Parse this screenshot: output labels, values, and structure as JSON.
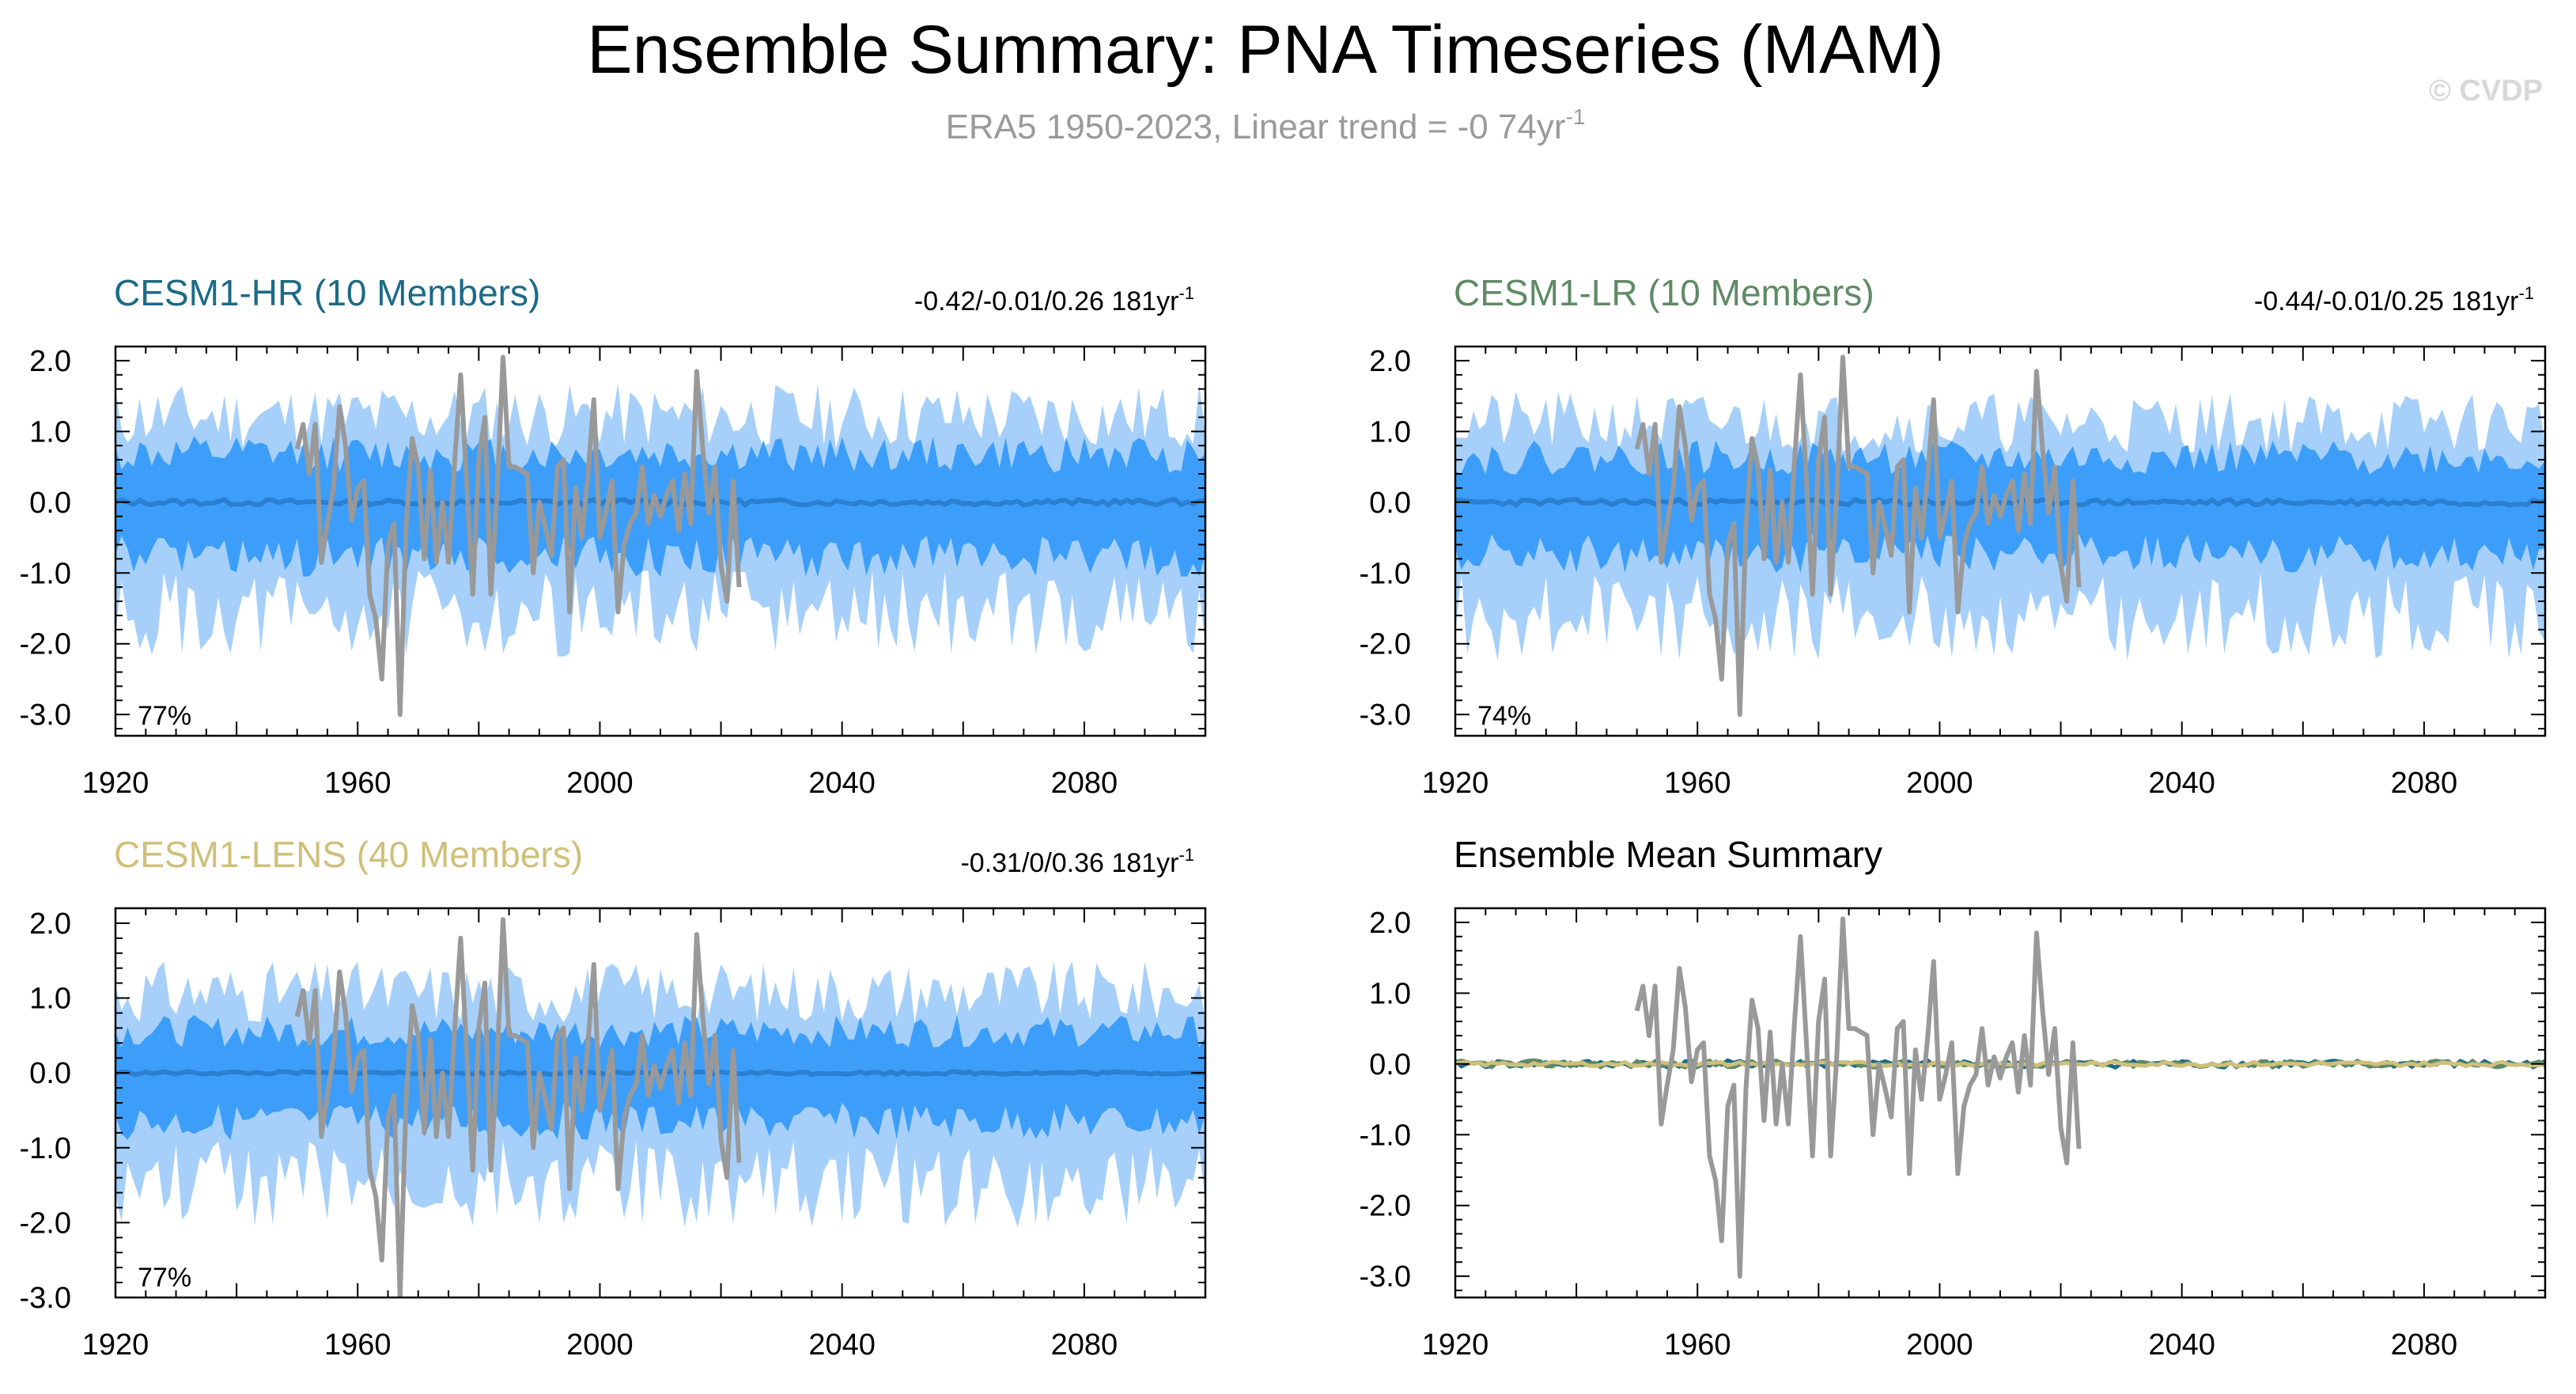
{
  "page": {
    "title": "Ensemble Summary: PNA Timeseries (MAM)",
    "subtitle_main": "ERA5 1950-2023, Linear trend = -0 74yr",
    "subtitle_sup": "-1",
    "watermark": "© CVDP"
  },
  "colors": {
    "outer_band": "#a6d0fa",
    "inner_band": "#3d9efa",
    "ens_mean": "#2a7fd0",
    "obs": "#999999",
    "title_hr": "#1b6b86",
    "title_lr": "#5f8a66",
    "title_lens": "#cfc07a",
    "subtitle": "#9a9a9a",
    "watermark": "#d8d8d8"
  },
  "chart_data": [
    {
      "type": "area",
      "panel": "CESM1-HR",
      "title": "CESM1-HR (10 Members)",
      "trend_text": "-0.42/-0.01/0.26 181yr",
      "trend_sup": "-1",
      "pct_label": "77%",
      "xlim": [
        1920,
        2100
      ],
      "ylim": [
        -3.3,
        2.2
      ],
      "xticks": [
        "1920",
        "1960",
        "2000",
        "2040",
        "2080"
      ],
      "yticks": [
        "2.0",
        "1.0",
        "0.0",
        "-1.0",
        "-2.0",
        "-3.0"
      ],
      "x_start": 1920,
      "x_end": 2100,
      "series": [
        {
          "name": "",
          "band": "outer",
          "upper_amp": 1.35,
          "lower_amp": -1.75,
          "seed": 11
        },
        {
          "name": "",
          "band": "inner",
          "upper_amp": 0.75,
          "lower_amp": -0.85,
          "seed": 12
        },
        {
          "name": "",
          "band": "mean",
          "amp": 0.04,
          "seed": 13
        }
      ]
    },
    {
      "type": "area",
      "panel": "CESM1-LR",
      "title": "CESM1-LR (10 Members)",
      "trend_text": "-0.44/-0.01/0.25 181yr",
      "trend_sup": "-1",
      "pct_label": "74%",
      "xlim": [
        1920,
        2100
      ],
      "ylim": [
        -3.3,
        2.2
      ],
      "xticks": [
        "1920",
        "1960",
        "2000",
        "2040",
        "2080"
      ],
      "yticks": [
        "2.0",
        "1.0",
        "0.0",
        "-1.0",
        "-2.0",
        "-3.0"
      ],
      "x_start": 1920,
      "x_end": 2100,
      "series": [
        {
          "name": "",
          "band": "outer",
          "upper_amp": 1.25,
          "lower_amp": -1.8,
          "seed": 21
        },
        {
          "name": "",
          "band": "inner",
          "upper_amp": 0.7,
          "lower_amp": -0.8,
          "seed": 22
        },
        {
          "name": "",
          "band": "mean",
          "amp": 0.04,
          "seed": 23
        }
      ]
    },
    {
      "type": "area",
      "panel": "CESM1-LENS",
      "title": "CESM1-LENS (40 Members)",
      "trend_text": "-0.31/0/0.36 181yr",
      "trend_sup": "-1",
      "pct_label": "77%",
      "xlim": [
        1920,
        2100
      ],
      "ylim": [
        -3.0,
        2.2
      ],
      "xticks": [
        "1920",
        "1960",
        "2000",
        "2040",
        "2080"
      ],
      "yticks": [
        "2.0",
        "1.0",
        "0.0",
        "-1.0",
        "-2.0",
        "-3.0"
      ],
      "x_start": 1920,
      "x_end": 2100,
      "series": [
        {
          "name": "",
          "band": "outer",
          "upper_amp": 1.2,
          "lower_amp": -1.65,
          "seed": 31
        },
        {
          "name": "",
          "band": "inner",
          "upper_amp": 0.62,
          "lower_amp": -0.72,
          "seed": 32
        },
        {
          "name": "",
          "band": "mean",
          "amp": 0.02,
          "seed": 33
        }
      ]
    },
    {
      "type": "line",
      "panel": "Ensemble Mean Summary",
      "title": "Ensemble Mean Summary",
      "xlim": [
        1920,
        2100
      ],
      "ylim": [
        -3.3,
        2.2
      ],
      "xticks": [
        "1920",
        "1960",
        "2000",
        "2040",
        "2080"
      ],
      "yticks": [
        "2.0",
        "1.0",
        "0.0",
        "-1.0",
        "-2.0",
        "-3.0"
      ],
      "series": [
        {
          "name": "",
          "color": "#1b6b86",
          "amp": 0.05,
          "seed": 41
        },
        {
          "name": "",
          "color": "#5f8a66",
          "amp": 0.05,
          "seed": 42
        },
        {
          "name": "",
          "color": "#cfc07a",
          "amp": 0.03,
          "seed": 43
        }
      ]
    }
  ],
  "observations": {
    "name": "ERA5",
    "x_start": 1950,
    "values": [
      0.75,
      1.1,
      0.4,
      1.1,
      -0.85,
      -0.3,
      0.2,
      1.35,
      0.8,
      -0.25,
      0.2,
      0.3,
      -1.3,
      -1.65,
      -2.5,
      -0.6,
      -0.3,
      -3.0,
      -0.35,
      0.9,
      0.5,
      -0.8,
      0.45,
      -0.85,
      0.0,
      -0.85,
      0.55,
      1.8,
      0.3,
      -1.3,
      0.6,
      1.2,
      -1.3,
      0.1,
      2.05,
      0.5,
      0.5,
      0.45,
      0.4,
      -1.0,
      0.0,
      -0.35,
      -0.75,
      0.5,
      0.6,
      -1.55,
      0.2,
      -0.5,
      0.35,
      1.45,
      -0.5,
      -0.15,
      0.3,
      -1.55,
      -0.6,
      -0.3,
      -0.15,
      0.5,
      -0.3,
      0.1,
      -0.2,
      0.1,
      0.3,
      -0.4,
      0.4,
      -0.3,
      1.85,
      0.75,
      -0.15,
      0.5,
      -0.9,
      -1.4,
      0.3,
      -1.2
    ]
  }
}
